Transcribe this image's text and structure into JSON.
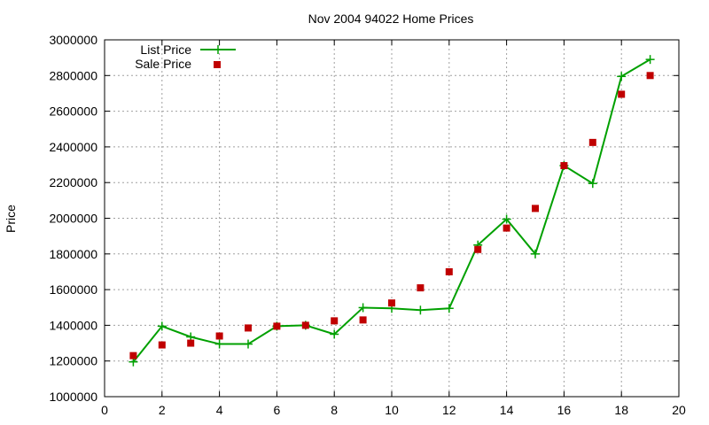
{
  "chart_data": {
    "type": "line",
    "title": "Nov 2004 94022 Home Prices",
    "xlabel": "",
    "ylabel": "Price",
    "xlim": [
      0,
      20
    ],
    "ylim": [
      1000000,
      3000000
    ],
    "x_ticks": [
      0,
      2,
      4,
      6,
      8,
      10,
      12,
      14,
      16,
      18,
      20
    ],
    "y_ticks": [
      1000000,
      1200000,
      1400000,
      1600000,
      1800000,
      2000000,
      2200000,
      2400000,
      2600000,
      2800000,
      3000000
    ],
    "grid": true,
    "legend_position": "top-left",
    "series": [
      {
        "name": "List Price",
        "style": "linespoints",
        "marker": "plus",
        "color": "#00a000",
        "x": [
          1,
          2,
          3,
          4,
          5,
          6,
          7,
          8,
          9,
          10,
          11,
          12,
          13,
          14,
          15,
          16,
          17,
          18,
          19
        ],
        "values": [
          1195000,
          1395000,
          1335000,
          1295000,
          1295000,
          1395000,
          1400000,
          1350000,
          1499000,
          1495000,
          1485000,
          1495000,
          1850000,
          1995000,
          1800000,
          2295000,
          2195000,
          2795000,
          2890000
        ]
      },
      {
        "name": "Sale Price",
        "style": "points",
        "marker": "square",
        "color": "#c00000",
        "x": [
          1,
          2,
          3,
          4,
          5,
          6,
          7,
          8,
          9,
          10,
          11,
          12,
          13,
          14,
          15,
          16,
          17,
          18,
          19
        ],
        "values": [
          1230000,
          1290000,
          1300000,
          1340000,
          1385000,
          1395000,
          1400000,
          1425000,
          1430000,
          1525000,
          1610000,
          1700000,
          1825000,
          1945000,
          2055000,
          2295000,
          2425000,
          2695000,
          2800000
        ]
      }
    ]
  }
}
